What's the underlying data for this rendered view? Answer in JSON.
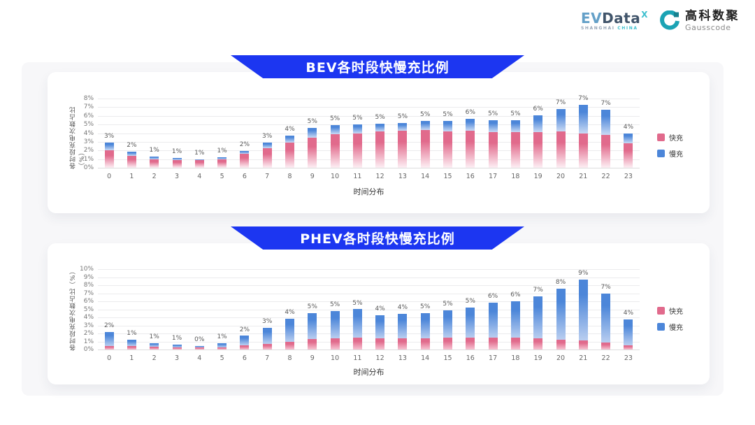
{
  "header": {
    "evdata": {
      "ev": "EV",
      "data": "Data",
      "x": "X",
      "sub_left": "SHANGHAI",
      "sub_right": "CHINA"
    },
    "gausscode": {
      "cn": "高科数聚",
      "en": "Gausscode"
    }
  },
  "colors": {
    "banner_blue": "#1c36f1",
    "fast_pink": "#e16a8c",
    "slow_blue": "#4c86d9",
    "fast_fade": "#fdeff4",
    "slow_fade": "#c9daf4"
  },
  "chart_data": [
    {
      "type": "bar",
      "stacked": true,
      "title": "BEV各时段快慢充比例",
      "xlabel": "时间分布",
      "ylabel": "各时段充电次数占比（%）",
      "ylim": [
        0,
        8
      ],
      "ytick_step": 1,
      "grid": true,
      "legend_position": "right",
      "categories": [
        "0",
        "1",
        "2",
        "3",
        "4",
        "5",
        "6",
        "7",
        "8",
        "9",
        "10",
        "11",
        "12",
        "13",
        "14",
        "15",
        "16",
        "17",
        "18",
        "19",
        "20",
        "21",
        "22",
        "23"
      ],
      "series": [
        {
          "name": "快充",
          "color": "#e16a8c",
          "fade": "#fdeff4",
          "values": [
            2.0,
            1.4,
            1.0,
            0.9,
            0.9,
            1.0,
            1.6,
            2.3,
            2.9,
            3.5,
            3.9,
            4.0,
            4.2,
            4.3,
            4.4,
            4.2,
            4.3,
            4.1,
            4.1,
            4.1,
            4.2,
            4.0,
            3.8,
            2.8
          ]
        },
        {
          "name": "慢充",
          "color": "#4c86d9",
          "fade": "#c9daf4",
          "values": [
            0.9,
            0.5,
            0.3,
            0.25,
            0.1,
            0.25,
            0.35,
            0.6,
            0.85,
            1.1,
            1.0,
            1.0,
            0.9,
            0.9,
            1.0,
            1.2,
            1.4,
            1.4,
            1.4,
            2.0,
            2.6,
            3.3,
            2.9,
            1.2
          ]
        }
      ],
      "bar_labels": [
        "3%",
        "2%",
        "1%",
        "1%",
        "1%",
        "1%",
        "2%",
        "3%",
        "4%",
        "5%",
        "5%",
        "5%",
        "5%",
        "5%",
        "5%",
        "5%",
        "6%",
        "5%",
        "5%",
        "6%",
        "7%",
        "7%",
        "7%",
        "4%"
      ]
    },
    {
      "type": "bar",
      "stacked": true,
      "title": "PHEV各时段快慢充比例",
      "xlabel": "时间分布",
      "ylabel": "各时段充电次数占比（%）",
      "ylim": [
        0,
        10
      ],
      "ytick_step": 1,
      "grid": true,
      "legend_position": "right",
      "categories": [
        "0",
        "1",
        "2",
        "3",
        "4",
        "5",
        "6",
        "7",
        "8",
        "9",
        "10",
        "11",
        "12",
        "13",
        "14",
        "15",
        "16",
        "17",
        "18",
        "19",
        "20",
        "21",
        "22",
        "23"
      ],
      "series": [
        {
          "name": "快充",
          "color": "#e16a8c",
          "fade": "#f6c3d2",
          "values": [
            0.45,
            0.4,
            0.35,
            0.3,
            0.25,
            0.3,
            0.5,
            0.7,
            1.0,
            1.3,
            1.4,
            1.5,
            1.4,
            1.4,
            1.4,
            1.5,
            1.5,
            1.5,
            1.5,
            1.4,
            1.2,
            1.1,
            0.9,
            0.5
          ]
        },
        {
          "name": "慢充",
          "color": "#4c86d9",
          "fade": "#b9cef0",
          "values": [
            1.75,
            0.8,
            0.45,
            0.3,
            0.2,
            0.5,
            1.2,
            2.0,
            2.8,
            3.2,
            3.4,
            3.5,
            2.9,
            3.0,
            3.1,
            3.4,
            3.7,
            4.3,
            4.5,
            5.2,
            6.4,
            7.6,
            6.1,
            3.2
          ]
        }
      ],
      "bar_labels": [
        "2%",
        "1%",
        "1%",
        "1%",
        "0%",
        "1%",
        "2%",
        "3%",
        "4%",
        "5%",
        "5%",
        "5%",
        "4%",
        "4%",
        "5%",
        "5%",
        "5%",
        "6%",
        "6%",
        "7%",
        "8%",
        "9%",
        "7%",
        "4%"
      ]
    }
  ]
}
